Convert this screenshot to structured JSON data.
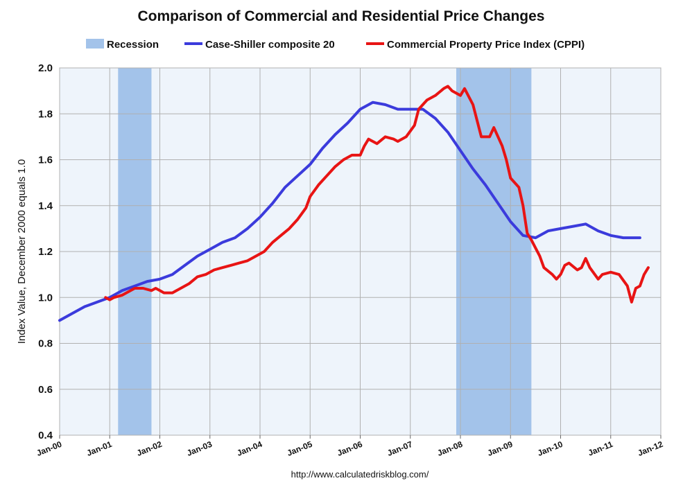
{
  "chart_data": {
    "type": "line",
    "title": "Comparison of Commercial and Residential Price Changes",
    "ylabel": "Index Value, December 2000 equals 1.0",
    "xlabel": "",
    "source": "http://www.calculatedriskblog.com/",
    "ylim": [
      0.4,
      2.0
    ],
    "yticks": [
      "0.4",
      "0.6",
      "0.8",
      "1.0",
      "1.2",
      "1.4",
      "1.6",
      "1.8",
      "2.0"
    ],
    "xlim": [
      "2000-01",
      "2012-01"
    ],
    "xticks": [
      "Jan-00",
      "Jan-01",
      "Jan-02",
      "Jan-03",
      "Jan-04",
      "Jan-05",
      "Jan-06",
      "Jan-07",
      "Jan-08",
      "Jan-09",
      "Jan-10",
      "Jan-11",
      "Jan-12"
    ],
    "grid": true,
    "legend_position": "top",
    "background_color": "#eef4fb",
    "recession": {
      "name": "Recession",
      "color": "#a3c3ea",
      "periods": [
        [
          "2001-03",
          "2001-11"
        ],
        [
          "2007-12",
          "2009-06"
        ]
      ]
    },
    "series": [
      {
        "name": "Case-Shiller composite 20",
        "color": "#3b3bdc",
        "points": [
          [
            "2000-01",
            0.9
          ],
          [
            "2000-04",
            0.93
          ],
          [
            "2000-07",
            0.96
          ],
          [
            "2000-10",
            0.98
          ],
          [
            "2001-01",
            1.0
          ],
          [
            "2001-04",
            1.03
          ],
          [
            "2001-07",
            1.05
          ],
          [
            "2001-10",
            1.07
          ],
          [
            "2002-01",
            1.08
          ],
          [
            "2002-04",
            1.1
          ],
          [
            "2002-07",
            1.14
          ],
          [
            "2002-10",
            1.18
          ],
          [
            "2003-01",
            1.21
          ],
          [
            "2003-04",
            1.24
          ],
          [
            "2003-07",
            1.26
          ],
          [
            "2003-10",
            1.3
          ],
          [
            "2004-01",
            1.35
          ],
          [
            "2004-04",
            1.41
          ],
          [
            "2004-07",
            1.48
          ],
          [
            "2004-10",
            1.53
          ],
          [
            "2005-01",
            1.58
          ],
          [
            "2005-04",
            1.65
          ],
          [
            "2005-07",
            1.71
          ],
          [
            "2005-10",
            1.76
          ],
          [
            "2006-01",
            1.82
          ],
          [
            "2006-04",
            1.85
          ],
          [
            "2006-07",
            1.84
          ],
          [
            "2006-10",
            1.82
          ],
          [
            "2007-01",
            1.82
          ],
          [
            "2007-04",
            1.82
          ],
          [
            "2007-07",
            1.78
          ],
          [
            "2007-10",
            1.72
          ],
          [
            "2008-01",
            1.64
          ],
          [
            "2008-04",
            1.56
          ],
          [
            "2008-07",
            1.49
          ],
          [
            "2008-10",
            1.41
          ],
          [
            "2009-01",
            1.33
          ],
          [
            "2009-04",
            1.27
          ],
          [
            "2009-07",
            1.26
          ],
          [
            "2009-10",
            1.29
          ],
          [
            "2010-01",
            1.3
          ],
          [
            "2010-04",
            1.31
          ],
          [
            "2010-07",
            1.32
          ],
          [
            "2010-10",
            1.29
          ],
          [
            "2011-01",
            1.27
          ],
          [
            "2011-04",
            1.26
          ],
          [
            "2011-07",
            1.26
          ],
          [
            "2011-08",
            1.26
          ]
        ]
      },
      {
        "name": "Commercial Property Price Index (CPPI)",
        "color": "#e81414",
        "points": [
          [
            "2000-12",
            1.0
          ],
          [
            "2001-01",
            0.99
          ],
          [
            "2001-02",
            1.0
          ],
          [
            "2001-04",
            1.01
          ],
          [
            "2001-06",
            1.03
          ],
          [
            "2001-07",
            1.04
          ],
          [
            "2001-09",
            1.04
          ],
          [
            "2001-11",
            1.03
          ],
          [
            "2001-12",
            1.04
          ],
          [
            "2002-01",
            1.03
          ],
          [
            "2002-02",
            1.02
          ],
          [
            "2002-04",
            1.02
          ],
          [
            "2002-06",
            1.04
          ],
          [
            "2002-08",
            1.06
          ],
          [
            "2002-10",
            1.09
          ],
          [
            "2002-12",
            1.1
          ],
          [
            "2003-02",
            1.12
          ],
          [
            "2003-04",
            1.13
          ],
          [
            "2003-06",
            1.14
          ],
          [
            "2003-08",
            1.15
          ],
          [
            "2003-10",
            1.16
          ],
          [
            "2003-12",
            1.18
          ],
          [
            "2004-02",
            1.2
          ],
          [
            "2004-04",
            1.24
          ],
          [
            "2004-06",
            1.27
          ],
          [
            "2004-08",
            1.3
          ],
          [
            "2004-10",
            1.34
          ],
          [
            "2004-12",
            1.39
          ],
          [
            "2005-01",
            1.44
          ],
          [
            "2005-03",
            1.49
          ],
          [
            "2005-05",
            1.53
          ],
          [
            "2005-07",
            1.57
          ],
          [
            "2005-09",
            1.6
          ],
          [
            "2005-11",
            1.62
          ],
          [
            "2006-01",
            1.62
          ],
          [
            "2006-02",
            1.66
          ],
          [
            "2006-03",
            1.69
          ],
          [
            "2006-05",
            1.67
          ],
          [
            "2006-07",
            1.7
          ],
          [
            "2006-09",
            1.69
          ],
          [
            "2006-10",
            1.68
          ],
          [
            "2006-12",
            1.7
          ],
          [
            "2007-02",
            1.75
          ],
          [
            "2007-03",
            1.82
          ],
          [
            "2007-05",
            1.86
          ],
          [
            "2007-07",
            1.88
          ],
          [
            "2007-09",
            1.91
          ],
          [
            "2007-10",
            1.92
          ],
          [
            "2007-11",
            1.9
          ],
          [
            "2008-01",
            1.88
          ],
          [
            "2008-02",
            1.91
          ],
          [
            "2008-04",
            1.84
          ],
          [
            "2008-06",
            1.7
          ],
          [
            "2008-08",
            1.7
          ],
          [
            "2008-09",
            1.74
          ],
          [
            "2008-11",
            1.66
          ],
          [
            "2008-12",
            1.6
          ],
          [
            "2009-01",
            1.52
          ],
          [
            "2009-03",
            1.48
          ],
          [
            "2009-04",
            1.4
          ],
          [
            "2009-05",
            1.28
          ],
          [
            "2009-06",
            1.25
          ],
          [
            "2009-08",
            1.18
          ],
          [
            "2009-09",
            1.13
          ],
          [
            "2009-11",
            1.1
          ],
          [
            "2009-12",
            1.08
          ],
          [
            "2010-01",
            1.1
          ],
          [
            "2010-02",
            1.14
          ],
          [
            "2010-03",
            1.15
          ],
          [
            "2010-05",
            1.12
          ],
          [
            "2010-06",
            1.13
          ],
          [
            "2010-07",
            1.17
          ],
          [
            "2010-08",
            1.13
          ],
          [
            "2010-10",
            1.08
          ],
          [
            "2010-11",
            1.1
          ],
          [
            "2011-01",
            1.11
          ],
          [
            "2011-03",
            1.1
          ],
          [
            "2011-05",
            1.05
          ],
          [
            "2011-06",
            0.98
          ],
          [
            "2011-07",
            1.04
          ],
          [
            "2011-08",
            1.05
          ],
          [
            "2011-09",
            1.1
          ],
          [
            "2011-10",
            1.13
          ]
        ]
      }
    ]
  }
}
